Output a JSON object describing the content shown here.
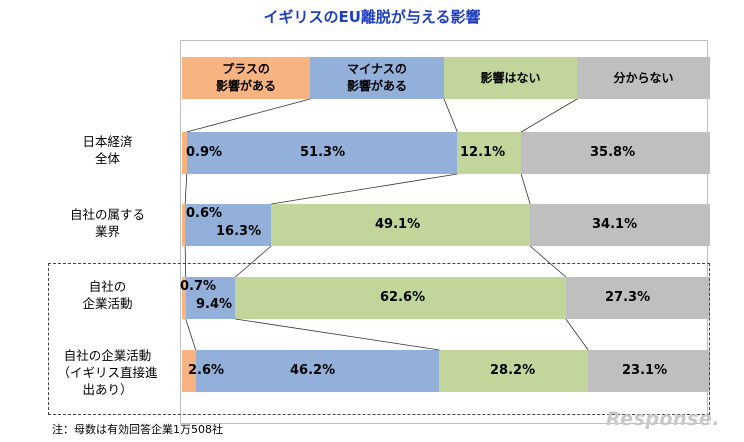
{
  "chart_data": {
    "type": "bar",
    "orientation": "horizontal-stacked-100",
    "title": "イギリスのEU離脱が与える影響",
    "series": [
      {
        "name": "プラスの\n影響がある",
        "color": "#f7b380"
      },
      {
        "name": "マイナスの\n影響がある",
        "color": "#92b0d9"
      },
      {
        "name": "影響はない",
        "color": "#c2d69b"
      },
      {
        "name": "分からない",
        "color": "#bfbfbf"
      }
    ],
    "categories": [
      {
        "label": "日本経済\n全体",
        "values": [
          0.9,
          51.3,
          12.1,
          35.8
        ],
        "labels": [
          "0.9%",
          "51.3%",
          "12.1%",
          "35.8%"
        ]
      },
      {
        "label": "自社の属する\n業界",
        "values": [
          0.6,
          16.3,
          49.1,
          34.1
        ],
        "labels": [
          "0.6%",
          "16.3%",
          "49.1%",
          "34.1%"
        ]
      },
      {
        "label": "自社の\n企業活動",
        "values": [
          0.7,
          9.4,
          62.6,
          27.3
        ],
        "labels": [
          "0.7%",
          "9.4%",
          "62.6%",
          "27.3%"
        ]
      },
      {
        "label": "自社の企業活動\n（イギリス直接進\n出あり）",
        "values": [
          2.6,
          46.2,
          28.2,
          23.1
        ],
        "labels": [
          "2.6%",
          "46.2%",
          "28.2%",
          "23.1%"
        ]
      }
    ],
    "legend_position": "top",
    "note": "注：母数は有効回答企業1万508社"
  },
  "watermark": "Response."
}
